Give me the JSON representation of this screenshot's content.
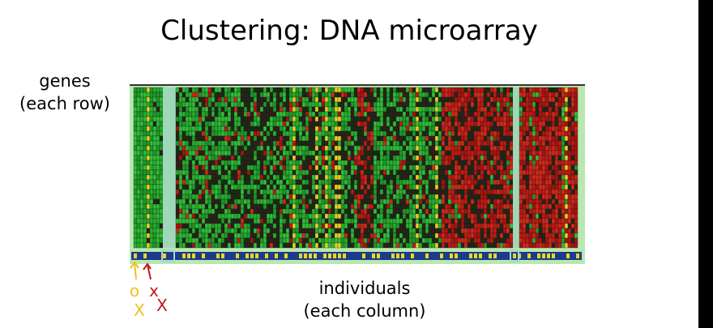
{
  "title": "Clustering: DNA microarray",
  "row_label": [
    "genes",
    "(each row)"
  ],
  "column_label": [
    "individuals",
    "(each column)"
  ],
  "annotations": [
    "o",
    "x",
    "X",
    "X"
  ]
}
